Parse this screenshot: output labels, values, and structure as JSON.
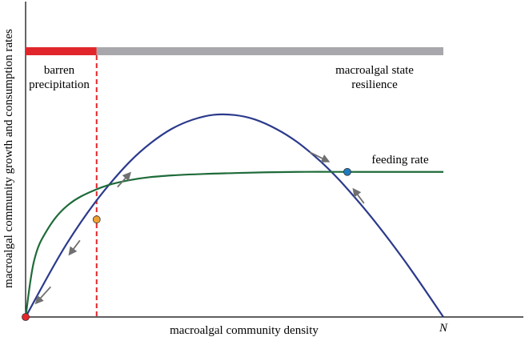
{
  "chart_data": {
    "type": "line",
    "title": "",
    "xlabel": "macroalgal community density",
    "ylabel": "macroalgal community growth and consumption rates",
    "x_end_label": "N",
    "xlim": [
      0,
      1
    ],
    "ylim": [
      0,
      1
    ],
    "grid": false,
    "series": [
      {
        "name": "",
        "color": "#2b3a8c",
        "x": [
          0,
          0.1,
          0.2,
          0.3,
          0.4,
          0.5,
          0.6,
          0.7,
          0.8,
          0.9,
          1.0
        ],
        "y": [
          0,
          0.32,
          0.57,
          0.75,
          0.85,
          0.87,
          0.81,
          0.68,
          0.49,
          0.26,
          0
        ]
      },
      {
        "name": "feeding rate",
        "color": "#1f6b3a",
        "x": [
          0,
          0.02,
          0.05,
          0.1,
          0.17,
          0.25,
          0.35,
          0.5,
          0.65,
          0.8,
          1.0
        ],
        "y": [
          0,
          0.24,
          0.37,
          0.48,
          0.55,
          0.59,
          0.61,
          0.62,
          0.625,
          0.625,
          0.625
        ]
      }
    ],
    "equilibria": [
      {
        "x": 0,
        "y": 0,
        "color": "#e8262b"
      },
      {
        "x": 0.17,
        "y": 0.42,
        "color": "#f0a030"
      },
      {
        "x": 0.77,
        "y": 0.625,
        "color": "#1f7bc0"
      }
    ],
    "threshold_x": 0.17,
    "threshold_color": "#e0262b",
    "bar": {
      "segments": [
        {
          "from": 0,
          "to": 0.17,
          "color": "#e0262b"
        },
        {
          "from": 0.17,
          "to": 1.0,
          "color": "#a8a8ac"
        }
      ],
      "labels": {
        "left_line1": "barren",
        "left_line2": "precipitation",
        "right_line1": "macroalgal state",
        "right_line2": "resilience"
      }
    },
    "curve_labels": {
      "feeding": "feeding rate"
    },
    "arrow_color": "#707070"
  }
}
